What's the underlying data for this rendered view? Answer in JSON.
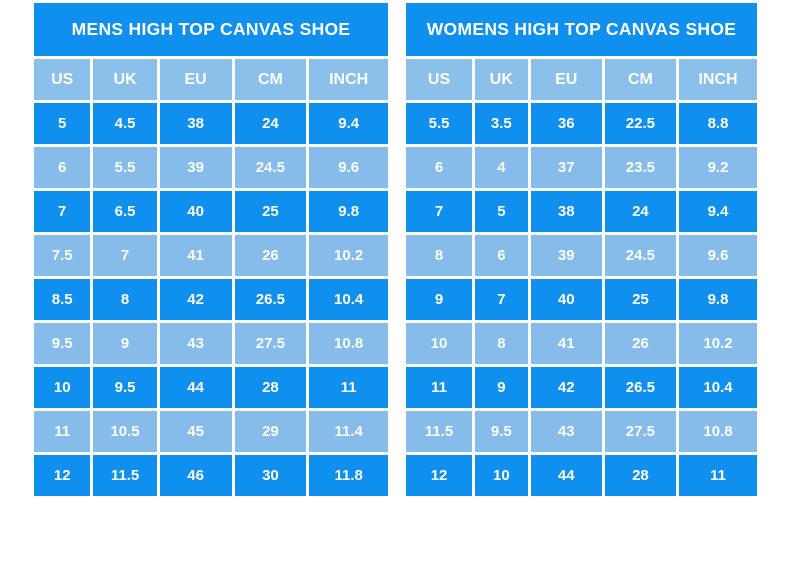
{
  "colors": {
    "accent_dark": "#0f90ee",
    "accent_light": "#85bce9",
    "header_light": "#8bc0eb",
    "grid": "#ffffff",
    "text": "#ffffff",
    "page_background": "#ffffff"
  },
  "chart_data": [
    {
      "type": "table",
      "title": "MENS HIGH TOP CANVAS SHOE",
      "columns": [
        "US",
        "UK",
        "EU",
        "CM",
        "INCH"
      ],
      "rows": [
        [
          "5",
          "4.5",
          "38",
          "24",
          "9.4"
        ],
        [
          "6",
          "5.5",
          "39",
          "24.5",
          "9.6"
        ],
        [
          "7",
          "6.5",
          "40",
          "25",
          "9.8"
        ],
        [
          "7.5",
          "7",
          "41",
          "26",
          "10.2"
        ],
        [
          "8.5",
          "8",
          "42",
          "26.5",
          "10.4"
        ],
        [
          "9.5",
          "9",
          "43",
          "27.5",
          "10.8"
        ],
        [
          "10",
          "9.5",
          "44",
          "28",
          "11"
        ],
        [
          "11",
          "10.5",
          "45",
          "29",
          "11.4"
        ],
        [
          "12",
          "11.5",
          "46",
          "30",
          "11.8"
        ]
      ]
    },
    {
      "type": "table",
      "title": "WOMENS HIGH TOP CANVAS SHOE",
      "columns": [
        "US",
        "UK",
        "EU",
        "CM",
        "INCH"
      ],
      "rows": [
        [
          "5.5",
          "3.5",
          "36",
          "22.5",
          "8.8"
        ],
        [
          "6",
          "4",
          "37",
          "23.5",
          "9.2"
        ],
        [
          "7",
          "5",
          "38",
          "24",
          "9.4"
        ],
        [
          "8",
          "6",
          "39",
          "24.5",
          "9.6"
        ],
        [
          "9",
          "7",
          "40",
          "25",
          "9.8"
        ],
        [
          "10",
          "8",
          "41",
          "26",
          "10.2"
        ],
        [
          "11",
          "9",
          "42",
          "26.5",
          "10.4"
        ],
        [
          "11.5",
          "9.5",
          "43",
          "27.5",
          "10.8"
        ],
        [
          "12",
          "10",
          "44",
          "28",
          "11"
        ]
      ]
    }
  ]
}
